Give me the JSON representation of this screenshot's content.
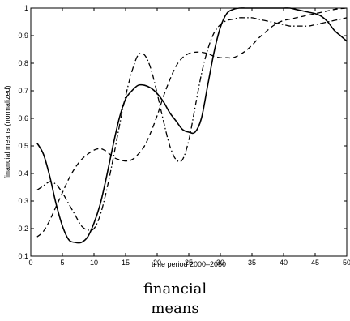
{
  "chart_data": {
    "type": "line",
    "xlabel": "time period 2000–2050",
    "ylabel": "financial means (normalized)",
    "xlim": [
      0,
      50
    ],
    "ylim": [
      0.1,
      1
    ],
    "xticks": [
      "0",
      "5",
      "10",
      "15",
      "20",
      "25",
      "30",
      "35",
      "40",
      "45",
      "50"
    ],
    "yticks": [
      "0.1",
      "0.2",
      "0.3",
      "0.4",
      "0.5",
      "0.6",
      "0.7",
      "0.8",
      "0.9",
      "1"
    ],
    "grid": false,
    "series": [
      {
        "style": "solid",
        "color": "#000000",
        "x": [
          1,
          2,
          3,
          4,
          5,
          6,
          7,
          8,
          9,
          10,
          11,
          12,
          13,
          14,
          15,
          16,
          17,
          18,
          19,
          20,
          21,
          22,
          23,
          24,
          25,
          26,
          27,
          28,
          29,
          30,
          31,
          32,
          33,
          34,
          35,
          36,
          37,
          38,
          39,
          40,
          41,
          42,
          43,
          44,
          45,
          46,
          47,
          48,
          49,
          50
        ],
        "y": [
          0.51,
          0.47,
          0.39,
          0.29,
          0.21,
          0.16,
          0.15,
          0.15,
          0.17,
          0.22,
          0.29,
          0.39,
          0.5,
          0.6,
          0.67,
          0.7,
          0.72,
          0.72,
          0.71,
          0.69,
          0.66,
          0.62,
          0.59,
          0.56,
          0.55,
          0.55,
          0.6,
          0.72,
          0.84,
          0.93,
          0.98,
          0.995,
          1.0,
          1.0,
          1.0,
          1.0,
          1.0,
          1.0,
          1.0,
          1.0,
          1.0,
          0.995,
          0.99,
          0.985,
          0.98,
          0.97,
          0.95,
          0.92,
          0.9,
          0.88
        ]
      },
      {
        "style": "dashed",
        "color": "#000000",
        "x": [
          1,
          2,
          3,
          4,
          5,
          6,
          7,
          8,
          9,
          10,
          11,
          12,
          13,
          14,
          15,
          16,
          17,
          18,
          19,
          20,
          21,
          22,
          23,
          24,
          25,
          26,
          27,
          28,
          29,
          30,
          31,
          32,
          33,
          34,
          35,
          36,
          37,
          38,
          39,
          40,
          41,
          42,
          43,
          44,
          45,
          46,
          47,
          48,
          49,
          50
        ],
        "y": [
          0.17,
          0.19,
          0.23,
          0.28,
          0.33,
          0.38,
          0.42,
          0.45,
          0.47,
          0.485,
          0.49,
          0.48,
          0.46,
          0.45,
          0.445,
          0.45,
          0.47,
          0.5,
          0.55,
          0.61,
          0.68,
          0.74,
          0.79,
          0.82,
          0.835,
          0.84,
          0.84,
          0.835,
          0.825,
          0.82,
          0.82,
          0.82,
          0.83,
          0.845,
          0.865,
          0.89,
          0.91,
          0.93,
          0.945,
          0.955,
          0.96,
          0.965,
          0.97,
          0.975,
          0.98,
          0.985,
          0.99,
          0.995,
          0.998,
          1.0
        ]
      },
      {
        "style": "dashdot",
        "color": "#000000",
        "x": [
          1,
          2,
          3,
          4,
          5,
          6,
          7,
          8,
          9,
          10,
          11,
          12,
          13,
          14,
          15,
          16,
          17,
          18,
          19,
          20,
          21,
          22,
          23,
          24,
          25,
          26,
          27,
          28,
          29,
          30,
          31,
          32,
          33,
          34,
          35,
          36,
          37,
          38,
          39,
          40,
          41,
          42,
          43,
          44,
          45,
          46,
          47,
          48,
          49,
          50
        ],
        "y": [
          0.34,
          0.355,
          0.37,
          0.36,
          0.33,
          0.29,
          0.25,
          0.21,
          0.195,
          0.2,
          0.25,
          0.34,
          0.45,
          0.57,
          0.68,
          0.77,
          0.83,
          0.83,
          0.78,
          0.69,
          0.59,
          0.5,
          0.45,
          0.45,
          0.52,
          0.64,
          0.76,
          0.85,
          0.91,
          0.94,
          0.955,
          0.96,
          0.965,
          0.965,
          0.965,
          0.96,
          0.955,
          0.95,
          0.945,
          0.94,
          0.935,
          0.935,
          0.935,
          0.935,
          0.94,
          0.945,
          0.95,
          0.955,
          0.96,
          0.965
        ]
      }
    ]
  },
  "caption": {
    "line1": "financial",
    "line2": "means"
  }
}
